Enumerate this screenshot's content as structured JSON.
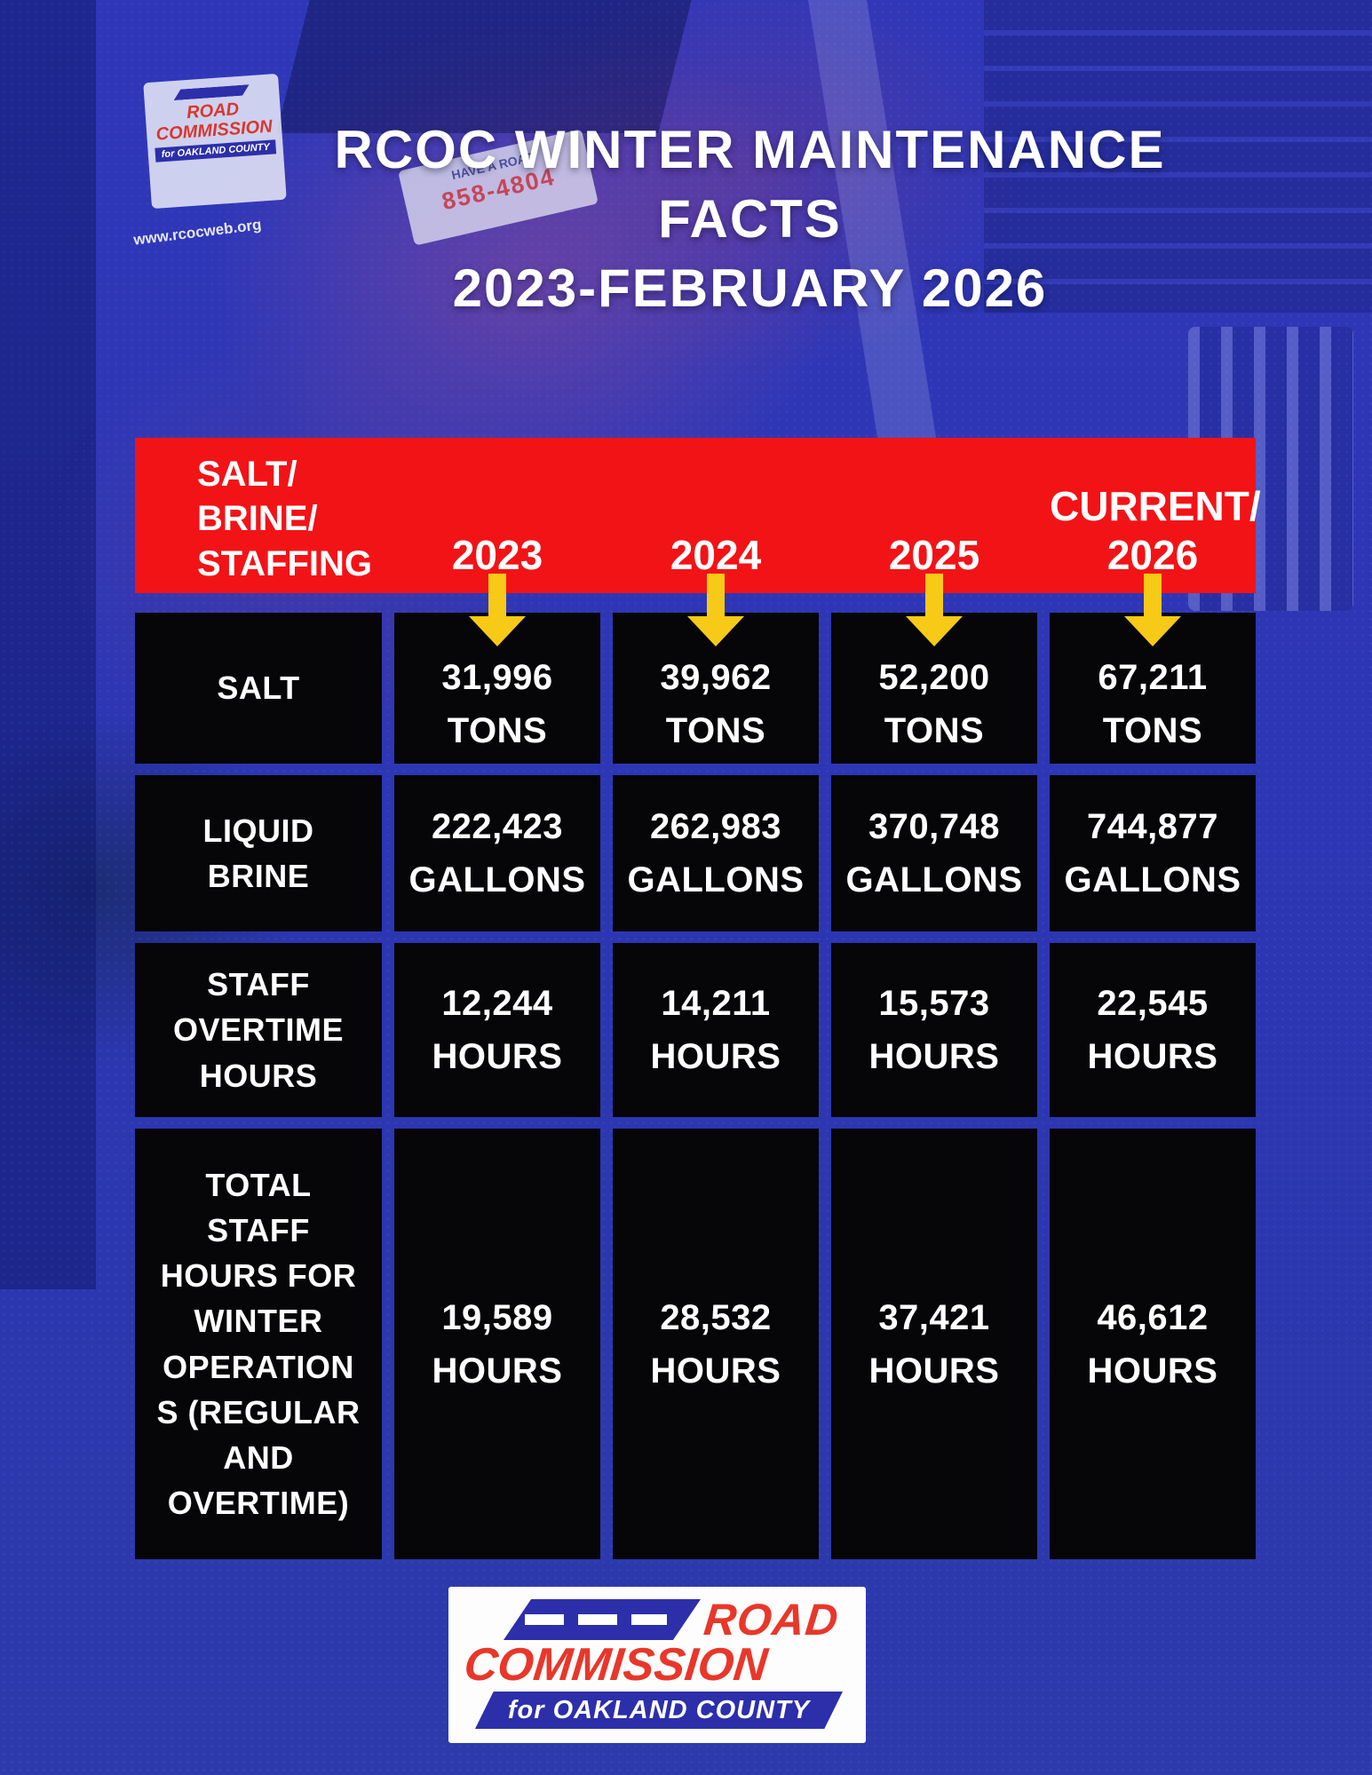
{
  "title": {
    "line1": "RCOC WINTER MAINTENANCE",
    "line2": "FACTS",
    "line3": "2023-FEBRUARY 2026"
  },
  "header": {
    "category": "SALT/\nBRINE/\nSTAFFING",
    "col1": "2023",
    "col2": "2024",
    "col3": "2025",
    "col4": "CURRENT/\n2026"
  },
  "table": {
    "rows": [
      {
        "label": "SALT",
        "cells": [
          "31,996\nTONS",
          "39,962\nTONS",
          "52,200\nTONS",
          "67,211\nTONS"
        ]
      },
      {
        "label": "LIQUID\nBRINE",
        "cells": [
          "222,423\nGALLONS",
          "262,983\nGALLONS",
          "370,748\nGALLONS",
          "744,877\nGALLONS"
        ]
      },
      {
        "label": "STAFF\nOVERTIME\nHOURS",
        "cells": [
          "12,244\nHOURS",
          "14,211\nHOURS",
          "15,573\nHOURS",
          "22,545\nHOURS"
        ]
      },
      {
        "label": "TOTAL\nSTAFF\nHOURS FOR\nWINTER\nOPERATION\nS (REGULAR\nAND\nOVERTIME)",
        "cells": [
          "19,589\nHOURS",
          "28,532\nHOURS",
          "37,421\nHOURS",
          "46,612\nHOURS"
        ]
      }
    ]
  },
  "logo": {
    "road_word": "ROAD",
    "commission_word": "COMMISSION",
    "tagline": "for OAKLAND COUNTY"
  },
  "background_photo": {
    "door_sign": {
      "line1": "ROAD",
      "line2": "COMMISSION",
      "line3": "for OAKLAND COUNTY"
    },
    "website_text": "www.rcocweb.org",
    "plate_text_top": "HAVE A ROAD",
    "plate_text_number": "858-4804"
  },
  "colors": {
    "background_blue": "#2d38b2",
    "header_red": "#f21317",
    "arrow_yellow": "#f6ca16",
    "cell_black": "#060608",
    "text_white": "#ffffff",
    "logo_red": "#e8372a",
    "logo_blue": "#2c2fa9"
  },
  "chart_data": {
    "type": "table",
    "title": "RCOC WINTER MAINTENANCE FACTS 2023-FEBRUARY 2026",
    "columns": [
      "SALT/BRINE/STAFFING",
      "2023",
      "2024",
      "2025",
      "CURRENT/2026"
    ],
    "rows": [
      {
        "label": "SALT",
        "unit": "TONS",
        "values": [
          31996,
          39962,
          52200,
          67211
        ]
      },
      {
        "label": "LIQUID BRINE",
        "unit": "GALLONS",
        "values": [
          222423,
          262983,
          370748,
          744877
        ]
      },
      {
        "label": "STAFF OVERTIME HOURS",
        "unit": "HOURS",
        "values": [
          12244,
          14211,
          15573,
          22545
        ]
      },
      {
        "label": "TOTAL STAFF HOURS FOR WINTER OPERATIONS (REGULAR AND OVERTIME)",
        "unit": "HOURS",
        "values": [
          19589,
          28532,
          37421,
          46612
        ]
      }
    ],
    "legend_position": "none",
    "grid": false
  }
}
